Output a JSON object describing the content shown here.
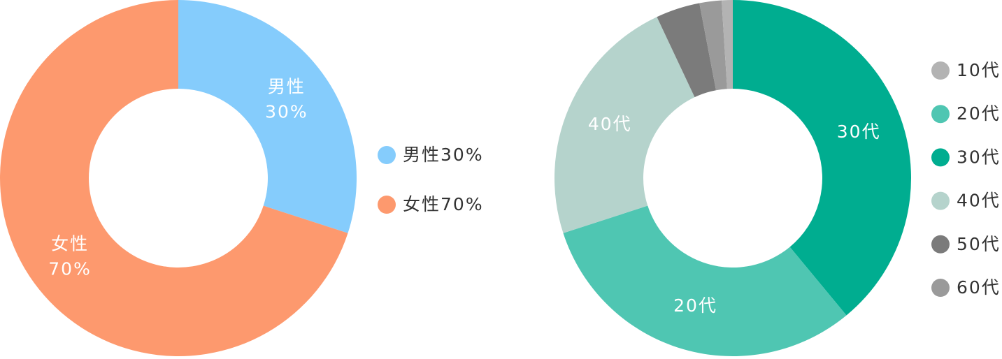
{
  "chart_data": [
    {
      "type": "donut",
      "categories": [
        "男性",
        "女性"
      ],
      "values": [
        30,
        70
      ],
      "value_labels": [
        "30%",
        "70%"
      ],
      "colors": [
        "#85ccfc",
        "#fd996e"
      ]
    },
    {
      "type": "donut",
      "categories": [
        "10代",
        "20代",
        "30代",
        "40代",
        "50代",
        "60代"
      ],
      "values": [
        1,
        31,
        39,
        23,
        4,
        2
      ],
      "colors": [
        "#b3b3b3",
        "#4fc6b2",
        "#00ad90",
        "#b5d3cc",
        "#7b7b7b",
        "#9a9a9a"
      ]
    }
  ]
}
